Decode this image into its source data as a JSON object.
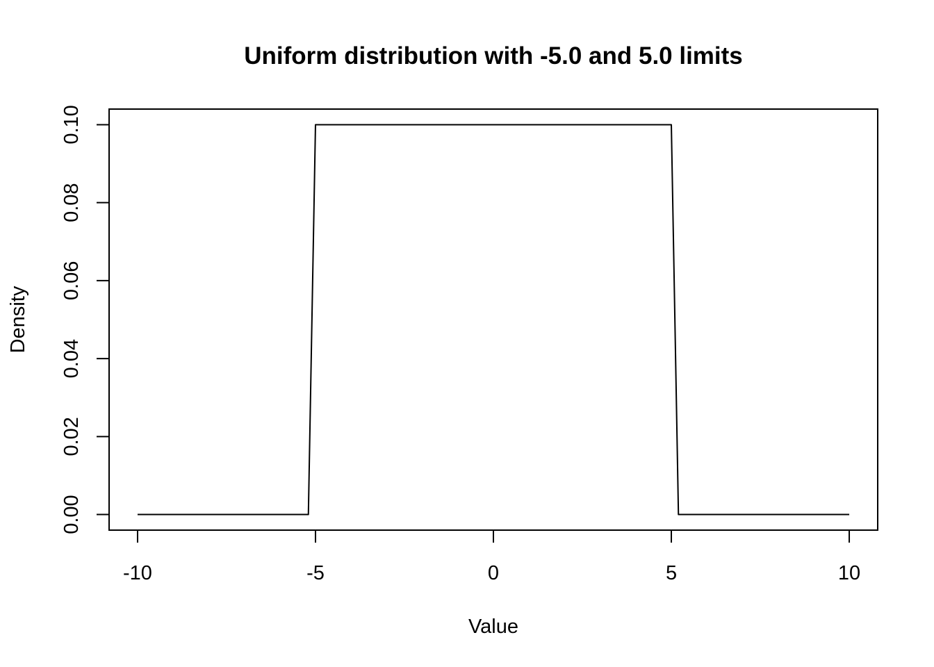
{
  "chart_data": {
    "type": "line",
    "title": "Uniform distribution with -5.0 and 5.0 limits",
    "xlabel": "Value",
    "ylabel": "Density",
    "xlim": [
      -10.8,
      10.8
    ],
    "ylim": [
      -0.004,
      0.104
    ],
    "x_ticks": [
      -10,
      -5,
      0,
      5,
      10
    ],
    "x_tick_labels": [
      "-10",
      "-5",
      "0",
      "5",
      "10"
    ],
    "y_ticks": [
      0,
      0.02,
      0.04,
      0.06,
      0.08,
      0.1
    ],
    "y_tick_labels": [
      "0.00",
      "0.02",
      "0.04",
      "0.06",
      "0.08",
      "0.10"
    ],
    "grid": false,
    "series": [
      {
        "color": "#000000",
        "x": [
          -10,
          -5.2,
          -5.0,
          5.0,
          5.2,
          10
        ],
        "y": [
          0,
          0,
          0.1,
          0.1,
          0,
          0
        ]
      }
    ]
  }
}
